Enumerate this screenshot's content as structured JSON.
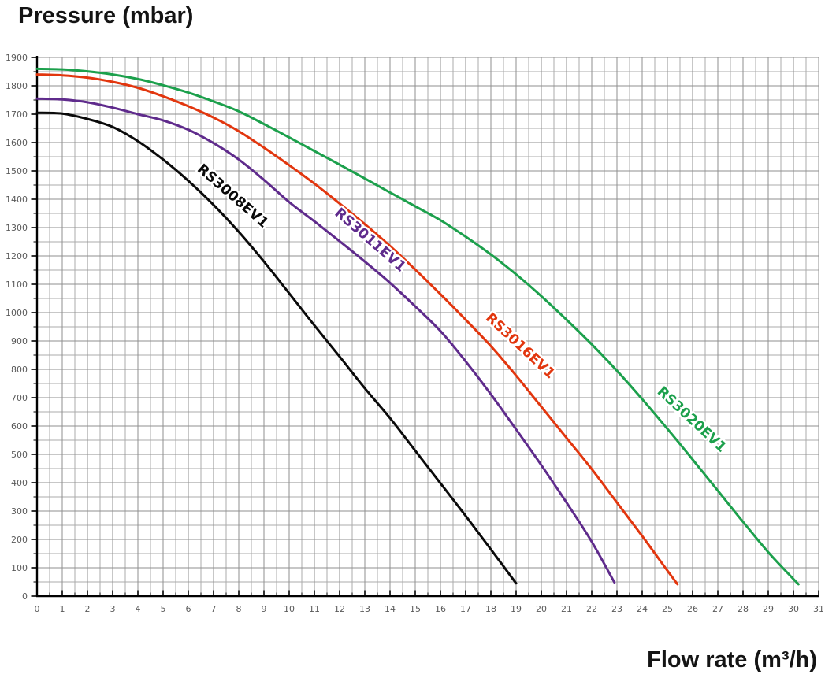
{
  "page": {
    "title": "Pressure (mbar)",
    "x_axis_label": "Flow rate (m³/h)"
  },
  "chart_data": {
    "type": "line",
    "title": "Pressure (mbar)",
    "xlabel": "Flow rate (m³/h)",
    "ylabel": "Pressure (mbar)",
    "xlim": [
      0,
      31
    ],
    "ylim": [
      0,
      1900
    ],
    "x_major_step": 1,
    "x_minor_step": 0.5,
    "y_major_step": 100,
    "y_minor_step": 50,
    "grid": "major and minor grid on, gray",
    "legend_position": "inline rotated labels on curves",
    "x_ticks": [
      0,
      1,
      2,
      3,
      4,
      5,
      6,
      7,
      8,
      9,
      10,
      11,
      12,
      13,
      14,
      15,
      16,
      17,
      18,
      19,
      20,
      21,
      22,
      23,
      24,
      25,
      26,
      27,
      28,
      29,
      30,
      31
    ],
    "y_ticks": [
      0,
      100,
      200,
      300,
      400,
      500,
      600,
      700,
      800,
      900,
      1000,
      1100,
      1200,
      1300,
      1400,
      1500,
      1600,
      1700,
      1800,
      1900
    ],
    "colors": {
      "axis": "#000000",
      "major_grid": "#8f8f8f",
      "minor_grid": "#ababab",
      "tick_label": "#5a5a5a"
    },
    "series": [
      {
        "name": "RS3008EV1",
        "color": "#0a0a0a",
        "label": {
          "x": 7.65,
          "y": 1400,
          "angle": 41
        },
        "points": [
          [
            0,
            1705
          ],
          [
            1,
            1702
          ],
          [
            2,
            1683
          ],
          [
            3,
            1655
          ],
          [
            4,
            1605
          ],
          [
            5,
            1540
          ],
          [
            6,
            1465
          ],
          [
            7,
            1380
          ],
          [
            8,
            1285
          ],
          [
            9,
            1180
          ],
          [
            10,
            1068
          ],
          [
            11,
            955
          ],
          [
            12,
            845
          ],
          [
            13,
            733
          ],
          [
            14,
            628
          ],
          [
            15,
            513
          ],
          [
            16,
            398
          ],
          [
            17,
            283
          ],
          [
            18,
            165
          ],
          [
            19,
            45
          ]
        ]
      },
      {
        "name": "RS3011EV1",
        "color": "#5f2b8c",
        "label": {
          "x": 13.1,
          "y": 1245,
          "angle": 41
        },
        "points": [
          [
            0,
            1755
          ],
          [
            1,
            1752
          ],
          [
            2,
            1742
          ],
          [
            3,
            1723
          ],
          [
            4,
            1700
          ],
          [
            5,
            1678
          ],
          [
            6,
            1645
          ],
          [
            7,
            1598
          ],
          [
            8,
            1540
          ],
          [
            9,
            1468
          ],
          [
            10,
            1390
          ],
          [
            11,
            1322
          ],
          [
            12,
            1252
          ],
          [
            13,
            1180
          ],
          [
            14,
            1105
          ],
          [
            15,
            1022
          ],
          [
            16,
            935
          ],
          [
            17,
            828
          ],
          [
            18,
            712
          ],
          [
            19,
            588
          ],
          [
            20,
            462
          ],
          [
            21,
            330
          ],
          [
            22,
            192
          ],
          [
            22.9,
            48
          ]
        ]
      },
      {
        "name": "RS3016EV1",
        "color": "#e2360e",
        "label": {
          "x": 19.05,
          "y": 872,
          "angle": 43
        },
        "points": [
          [
            0,
            1840
          ],
          [
            1,
            1837
          ],
          [
            2,
            1829
          ],
          [
            3,
            1814
          ],
          [
            4,
            1793
          ],
          [
            5,
            1763
          ],
          [
            6,
            1728
          ],
          [
            7,
            1688
          ],
          [
            8,
            1640
          ],
          [
            9,
            1582
          ],
          [
            10,
            1520
          ],
          [
            11,
            1455
          ],
          [
            12,
            1385
          ],
          [
            13,
            1312
          ],
          [
            14,
            1235
          ],
          [
            15,
            1152
          ],
          [
            16,
            1065
          ],
          [
            17,
            975
          ],
          [
            18,
            882
          ],
          [
            19,
            778
          ],
          [
            20,
            668
          ],
          [
            21,
            558
          ],
          [
            22,
            448
          ],
          [
            23,
            330
          ],
          [
            24,
            212
          ],
          [
            25,
            90
          ],
          [
            25.4,
            42
          ]
        ]
      },
      {
        "name": "RS3020EV1",
        "color": "#1ca04c",
        "label": {
          "x": 25.85,
          "y": 612,
          "angle": 43
        },
        "points": [
          [
            0,
            1860
          ],
          [
            1,
            1858
          ],
          [
            2,
            1851
          ],
          [
            3,
            1840
          ],
          [
            4,
            1824
          ],
          [
            5,
            1802
          ],
          [
            6,
            1776
          ],
          [
            7,
            1745
          ],
          [
            8,
            1710
          ],
          [
            9,
            1665
          ],
          [
            10,
            1618
          ],
          [
            11,
            1570
          ],
          [
            12,
            1522
          ],
          [
            13,
            1473
          ],
          [
            14,
            1424
          ],
          [
            15,
            1375
          ],
          [
            16,
            1326
          ],
          [
            17,
            1268
          ],
          [
            18,
            1205
          ],
          [
            19,
            1135
          ],
          [
            20,
            1058
          ],
          [
            21,
            975
          ],
          [
            22,
            888
          ],
          [
            23,
            795
          ],
          [
            24,
            695
          ],
          [
            25,
            590
          ],
          [
            26,
            482
          ],
          [
            27,
            372
          ],
          [
            28,
            262
          ],
          [
            29,
            155
          ],
          [
            30,
            60
          ],
          [
            30.2,
            42
          ]
        ]
      }
    ]
  }
}
